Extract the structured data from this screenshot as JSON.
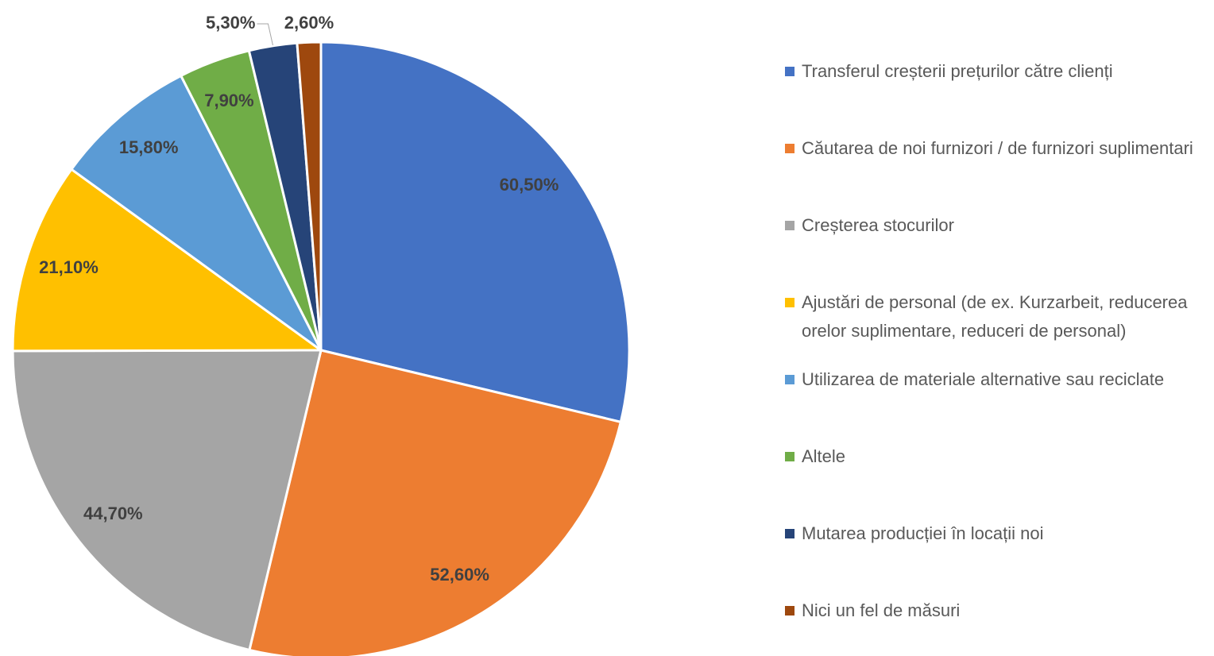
{
  "chart_data": {
    "type": "pie",
    "categories": [
      "Transferul creșterii prețurilor către clienți",
      "Căutarea de noi furnizori / de furnizori suplimentari",
      "Creșterea stocurilor",
      "Ajustări de personal (de ex. Kurzarbeit, reducerea orelor suplimentare, reduceri de personal)",
      "Utilizarea de materiale alternative sau reciclate",
      "Altele",
      "Mutarea producției în locații noi",
      "Nici un fel de măsuri"
    ],
    "values": [
      60.5,
      52.6,
      44.7,
      21.1,
      15.8,
      7.9,
      5.3,
      2.6
    ],
    "value_labels": [
      "60,50%",
      "52,60%",
      "44,70%",
      "21,10%",
      "15,80%",
      "7,90%",
      "5,30%",
      "2,60%"
    ],
    "colors": [
      "#4472c4",
      "#ed7d31",
      "#a5a5a5",
      "#ffc000",
      "#5b9bd5",
      "#70ad47",
      "#264478",
      "#9e480e"
    ],
    "legend": "right"
  }
}
